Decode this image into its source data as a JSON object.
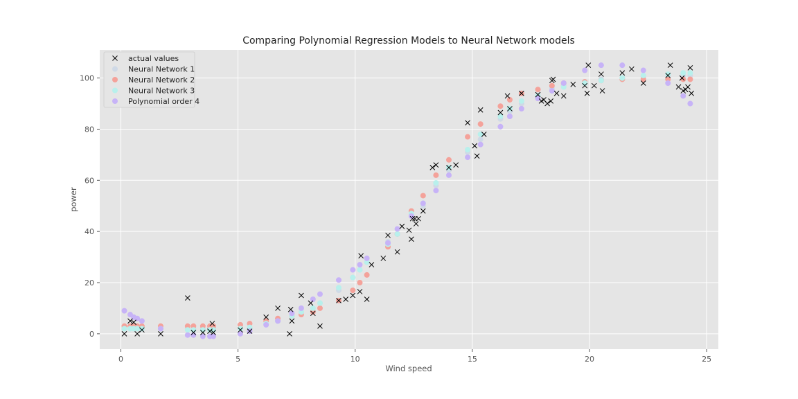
{
  "chart_data": {
    "type": "scatter",
    "title": "Comparing Polynomial Regression Models to Neural Network models",
    "xlabel": "Wind speed",
    "ylabel": "power",
    "xlim": [
      -0.9,
      25.5
    ],
    "ylim": [
      -6,
      111
    ],
    "xticks": [
      0,
      5,
      10,
      15,
      20,
      25
    ],
    "yticks": [
      0,
      20,
      40,
      60,
      80,
      100
    ],
    "grid": true,
    "legend_position": "top-left",
    "background": "#e5e5e5",
    "series": [
      {
        "name": "actual values",
        "marker": "x",
        "color": "#000000",
        "points": [
          [
            0.15,
            0
          ],
          [
            0.4,
            5
          ],
          [
            0.55,
            4.5
          ],
          [
            0.7,
            0
          ],
          [
            0.9,
            1.5
          ],
          [
            1.7,
            0
          ],
          [
            2.85,
            14
          ],
          [
            3.1,
            0.5
          ],
          [
            3.5,
            0.5
          ],
          [
            3.8,
            1
          ],
          [
            3.9,
            4
          ],
          [
            3.95,
            0.5
          ],
          [
            5.1,
            1.5
          ],
          [
            5.5,
            1
          ],
          [
            6.2,
            6.5
          ],
          [
            6.7,
            10
          ],
          [
            7.2,
            0
          ],
          [
            7.25,
            9.5
          ],
          [
            7.3,
            5
          ],
          [
            7.7,
            15
          ],
          [
            8.1,
            12
          ],
          [
            8.2,
            8
          ],
          [
            8.5,
            3
          ],
          [
            9.3,
            13
          ],
          [
            9.6,
            13.5
          ],
          [
            9.9,
            15
          ],
          [
            10.2,
            16.5
          ],
          [
            10.25,
            30.5
          ],
          [
            10.5,
            13.5
          ],
          [
            10.7,
            27
          ],
          [
            11.2,
            29.5
          ],
          [
            11.4,
            38.5
          ],
          [
            11.8,
            32
          ],
          [
            12.0,
            42
          ],
          [
            12.3,
            40.5
          ],
          [
            12.4,
            37
          ],
          [
            12.45,
            45
          ],
          [
            12.55,
            45
          ],
          [
            12.6,
            43
          ],
          [
            12.7,
            45
          ],
          [
            12.9,
            48
          ],
          [
            13.3,
            65
          ],
          [
            13.45,
            66
          ],
          [
            14.0,
            65
          ],
          [
            14.3,
            66
          ],
          [
            14.8,
            82.5
          ],
          [
            15.1,
            73.5
          ],
          [
            15.2,
            69.5
          ],
          [
            15.35,
            87.5
          ],
          [
            15.5,
            78
          ],
          [
            16.2,
            86.5
          ],
          [
            16.5,
            93
          ],
          [
            16.6,
            88
          ],
          [
            17.1,
            94
          ],
          [
            17.8,
            93.5
          ],
          [
            17.95,
            91
          ],
          [
            18.05,
            91.5
          ],
          [
            18.2,
            90
          ],
          [
            18.35,
            91
          ],
          [
            18.4,
            99
          ],
          [
            18.45,
            99.5
          ],
          [
            18.6,
            94
          ],
          [
            18.9,
            93
          ],
          [
            19.3,
            97.5
          ],
          [
            19.8,
            97
          ],
          [
            19.9,
            94
          ],
          [
            19.95,
            105
          ],
          [
            20.2,
            97
          ],
          [
            20.5,
            101.5
          ],
          [
            20.55,
            95
          ],
          [
            21.4,
            102
          ],
          [
            21.8,
            103.5
          ],
          [
            22.3,
            98
          ],
          [
            23.35,
            101
          ],
          [
            23.45,
            105
          ],
          [
            23.8,
            96.5
          ],
          [
            23.95,
            100
          ],
          [
            24.0,
            95
          ],
          [
            24.1,
            95.5
          ],
          [
            24.2,
            96.5
          ],
          [
            24.3,
            104
          ],
          [
            24.35,
            94
          ]
        ]
      },
      {
        "name": "Neural Network 1",
        "marker": "o",
        "color": "#cfd9e6",
        "points": [
          [
            0.15,
            2
          ],
          [
            0.4,
            2
          ],
          [
            0.55,
            2
          ],
          [
            0.7,
            2
          ],
          [
            0.9,
            2
          ],
          [
            1.7,
            2
          ],
          [
            2.85,
            2
          ],
          [
            3.1,
            2
          ],
          [
            3.5,
            2
          ],
          [
            3.8,
            2
          ],
          [
            3.95,
            2
          ],
          [
            5.1,
            2
          ],
          [
            5.5,
            2
          ],
          [
            6.2,
            4
          ],
          [
            6.7,
            5
          ],
          [
            7.3,
            7
          ],
          [
            7.7,
            8.5
          ],
          [
            8.2,
            10
          ],
          [
            8.5,
            12
          ],
          [
            9.3,
            17
          ],
          [
            9.9,
            22
          ],
          [
            10.2,
            25
          ],
          [
            10.5,
            28
          ],
          [
            11.4,
            36
          ],
          [
            11.8,
            39
          ],
          [
            12.4,
            46
          ],
          [
            12.9,
            50
          ],
          [
            13.45,
            58
          ],
          [
            14.0,
            64
          ],
          [
            14.8,
            71
          ],
          [
            15.35,
            76
          ],
          [
            16.2,
            84
          ],
          [
            16.6,
            87
          ],
          [
            17.1,
            90
          ],
          [
            17.8,
            93
          ],
          [
            18.4,
            96
          ],
          [
            18.9,
            97
          ],
          [
            19.8,
            98.5
          ],
          [
            20.5,
            99.5
          ],
          [
            21.4,
            100
          ],
          [
            22.3,
            100.5
          ],
          [
            23.35,
            101
          ],
          [
            24.0,
            101
          ],
          [
            24.3,
            101
          ]
        ]
      },
      {
        "name": "Neural Network 2",
        "marker": "o",
        "color": "#f4a29a",
        "points": [
          [
            0.15,
            3
          ],
          [
            0.4,
            3
          ],
          [
            0.55,
            3
          ],
          [
            0.7,
            3
          ],
          [
            0.9,
            3
          ],
          [
            1.7,
            3
          ],
          [
            2.85,
            3
          ],
          [
            3.1,
            3
          ],
          [
            3.5,
            3
          ],
          [
            3.8,
            3
          ],
          [
            3.95,
            3
          ],
          [
            5.1,
            3.5
          ],
          [
            5.5,
            4
          ],
          [
            6.2,
            5
          ],
          [
            6.7,
            6
          ],
          [
            7.3,
            7
          ],
          [
            7.7,
            7.5
          ],
          [
            8.2,
            8.5
          ],
          [
            8.5,
            10
          ],
          [
            9.3,
            13
          ],
          [
            9.9,
            17
          ],
          [
            10.2,
            20
          ],
          [
            10.5,
            23
          ],
          [
            11.4,
            34
          ],
          [
            11.8,
            39
          ],
          [
            12.4,
            48
          ],
          [
            12.9,
            54
          ],
          [
            13.45,
            62
          ],
          [
            14.0,
            68
          ],
          [
            14.8,
            77
          ],
          [
            15.35,
            82
          ],
          [
            16.2,
            89
          ],
          [
            16.6,
            91.5
          ],
          [
            17.1,
            94
          ],
          [
            17.8,
            95.5
          ],
          [
            18.4,
            97
          ],
          [
            18.9,
            98
          ],
          [
            19.8,
            98.5
          ],
          [
            20.5,
            99
          ],
          [
            21.4,
            99.5
          ],
          [
            22.3,
            99.5
          ],
          [
            23.35,
            99.5
          ],
          [
            24.0,
            99.5
          ],
          [
            24.3,
            99.5
          ]
        ]
      },
      {
        "name": "Neural Network 3",
        "marker": "o",
        "color": "#b8f0ec",
        "points": [
          [
            0.15,
            2
          ],
          [
            0.4,
            2
          ],
          [
            0.55,
            2
          ],
          [
            0.7,
            2
          ],
          [
            0.9,
            2
          ],
          [
            1.7,
            2
          ],
          [
            2.85,
            1.5
          ],
          [
            3.1,
            1.5
          ],
          [
            3.5,
            1.5
          ],
          [
            3.8,
            1.5
          ],
          [
            3.95,
            1.5
          ],
          [
            5.1,
            2
          ],
          [
            5.5,
            2.5
          ],
          [
            6.2,
            4
          ],
          [
            6.7,
            5
          ],
          [
            7.3,
            7
          ],
          [
            7.7,
            8.5
          ],
          [
            8.2,
            10
          ],
          [
            8.5,
            12
          ],
          [
            9.3,
            18
          ],
          [
            9.9,
            22
          ],
          [
            10.2,
            25
          ],
          [
            10.5,
            28
          ],
          [
            11.4,
            35
          ],
          [
            11.8,
            39
          ],
          [
            12.4,
            47
          ],
          [
            12.9,
            51
          ],
          [
            13.45,
            59
          ],
          [
            14.0,
            65
          ],
          [
            14.8,
            72
          ],
          [
            15.35,
            78
          ],
          [
            16.2,
            85
          ],
          [
            16.6,
            88
          ],
          [
            17.1,
            91
          ],
          [
            17.8,
            93
          ],
          [
            18.4,
            95
          ],
          [
            18.9,
            96.5
          ],
          [
            19.8,
            98
          ],
          [
            20.5,
            99
          ],
          [
            21.4,
            100
          ],
          [
            22.3,
            101
          ],
          [
            23.35,
            101.5
          ],
          [
            24.0,
            102
          ],
          [
            24.3,
            102
          ]
        ]
      },
      {
        "name": "Polynomial order 4",
        "marker": "o",
        "color": "#c7b3f7",
        "points": [
          [
            0.15,
            9
          ],
          [
            0.4,
            7.5
          ],
          [
            0.55,
            6.5
          ],
          [
            0.7,
            6
          ],
          [
            0.9,
            5
          ],
          [
            1.7,
            2
          ],
          [
            2.85,
            -0.5
          ],
          [
            3.1,
            -0.5
          ],
          [
            3.5,
            -1
          ],
          [
            3.8,
            -1
          ],
          [
            3.95,
            -1
          ],
          [
            5.1,
            0
          ],
          [
            5.5,
            1
          ],
          [
            6.2,
            3.5
          ],
          [
            6.7,
            5
          ],
          [
            7.3,
            8
          ],
          [
            7.7,
            10
          ],
          [
            8.2,
            13.5
          ],
          [
            8.5,
            15.5
          ],
          [
            9.3,
            21
          ],
          [
            9.9,
            25
          ],
          [
            10.2,
            27
          ],
          [
            10.5,
            29.5
          ],
          [
            11.4,
            35.5
          ],
          [
            11.8,
            41
          ],
          [
            12.4,
            46
          ],
          [
            12.9,
            51
          ],
          [
            13.45,
            56
          ],
          [
            14.0,
            62
          ],
          [
            14.8,
            69
          ],
          [
            15.35,
            74
          ],
          [
            16.2,
            81
          ],
          [
            16.6,
            85
          ],
          [
            17.1,
            88
          ],
          [
            17.8,
            92
          ],
          [
            18.4,
            95
          ],
          [
            18.9,
            98
          ],
          [
            19.8,
            103
          ],
          [
            20.5,
            105
          ],
          [
            21.4,
            105
          ],
          [
            22.3,
            103
          ],
          [
            23.35,
            98
          ],
          [
            24.0,
            93
          ],
          [
            24.3,
            90
          ]
        ]
      }
    ]
  }
}
